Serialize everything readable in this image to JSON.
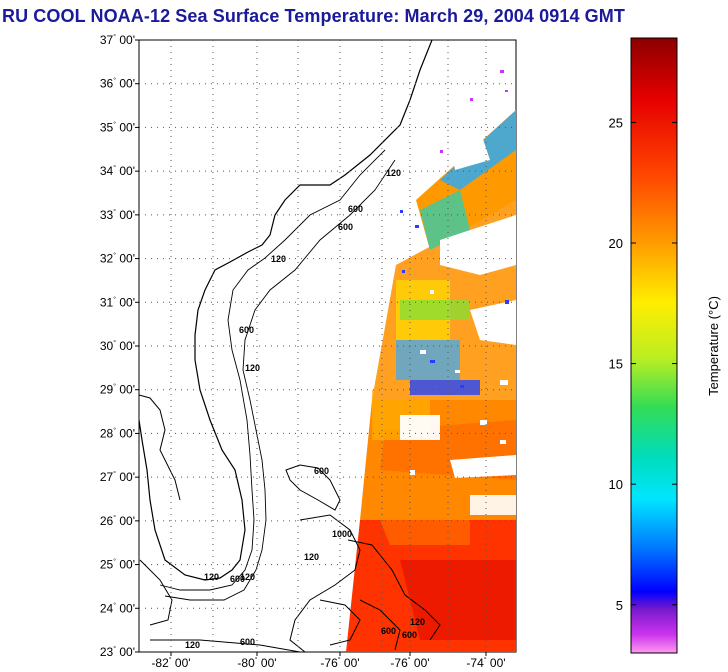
{
  "title": "RU COOL  NOAA-12  Sea Surface Temperature:  March 29, 2004 0914 GMT",
  "map": {
    "lat_labels": [
      "37",
      "36",
      "35",
      "34",
      "33",
      "32",
      "31",
      "30",
      "29",
      "28",
      "27",
      "26",
      "25",
      "24",
      "23"
    ],
    "lon_labels": [
      "-82",
      "-80",
      "-76",
      "-76",
      "-74"
    ],
    "minute_suffix": "00'",
    "contour_labels": [
      "120",
      "600",
      "600",
      "120",
      "600",
      "120",
      "120",
      "600",
      "1000",
      "120",
      "600",
      "120",
      "600",
      "120",
      "600",
      "600",
      "120"
    ]
  },
  "colorbar": {
    "axis_label": "Temperature (°C)",
    "tick_labels": [
      "25",
      "20",
      "15",
      "10",
      "5"
    ],
    "ticks": [
      25,
      20,
      15,
      10,
      5
    ],
    "range": [
      3,
      28.5
    ],
    "colors": {
      "top": "#8b0000",
      "red": "#ff1a00",
      "orange": "#ff9900",
      "yellow": "#ffff00",
      "green": "#33dd55",
      "cyan": "#00e5ff",
      "blue": "#0000ff",
      "purple": "#7a1acc",
      "magenta": "#ff66dd"
    }
  }
}
